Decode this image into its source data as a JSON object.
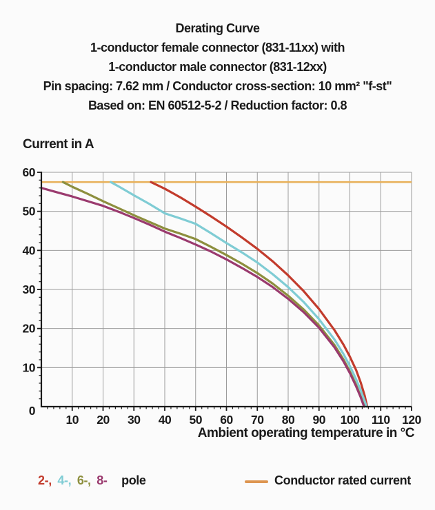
{
  "title": {
    "line1": "Derating Curve",
    "line2": "1-conductor female connector (831-11xx) with",
    "line3": "1-conductor male connector (831-12xx)",
    "line4": "Pin spacing: 7.62 mm / Conductor cross-section: 10 mm² \"f-st\"",
    "line5": "Based on: EN 60512-5-2 / Reduction factor: 0.8"
  },
  "axes": {
    "y_title": "Current in A",
    "x_title": "Ambient operating temperature in °C"
  },
  "legend": {
    "poles": [
      {
        "label": "2-,",
        "color": "#c23b2c"
      },
      {
        "label": "4-,",
        "color": "#7fccd4"
      },
      {
        "label": "6-,",
        "color": "#8d8f3e"
      },
      {
        "label": "8-",
        "color": "#9a3a6e"
      }
    ],
    "poles_suffix": "pole",
    "rated_label": "Conductor rated current",
    "rated_color": "#dd9550"
  },
  "chart_data": {
    "type": "line",
    "title": "Derating Curve",
    "xlabel": "Ambient operating temperature in °C",
    "ylabel": "Current in A",
    "xlim": [
      0,
      120
    ],
    "ylim": [
      0,
      60
    ],
    "x_ticks": [
      10,
      20,
      30,
      40,
      50,
      60,
      70,
      80,
      90,
      100,
      110,
      120
    ],
    "y_ticks": [
      0,
      10,
      20,
      30,
      40,
      50,
      60
    ],
    "minor_tick_step": 2,
    "grid": true,
    "grid_color": "#9b9b9b",
    "axis_color": "#1a1a1a",
    "legend_position": "bottom",
    "rated_current": {
      "label": "Conductor rated current",
      "value": 57.5,
      "color": "#e8b25c",
      "x_range": [
        0,
        120
      ]
    },
    "series": [
      {
        "name": "2-pole",
        "color": "#c23b2c",
        "points": [
          [
            35.5,
            57.5
          ],
          [
            40,
            55.8
          ],
          [
            45,
            53.6
          ],
          [
            50,
            51.2
          ],
          [
            55,
            48.7
          ],
          [
            60,
            46.1
          ],
          [
            65,
            43.3
          ],
          [
            70,
            40.4
          ],
          [
            75,
            37.2
          ],
          [
            80,
            33.6
          ],
          [
            85,
            29.6
          ],
          [
            90,
            25.0
          ],
          [
            95,
            19.6
          ],
          [
            98,
            15.8
          ],
          [
            100,
            12.8
          ],
          [
            102,
            9.4
          ],
          [
            103.5,
            6.2
          ],
          [
            104.8,
            2.8
          ],
          [
            105.6,
            0
          ]
        ]
      },
      {
        "name": "4-pole",
        "color": "#7fccd4",
        "points": [
          [
            22.5,
            57.5
          ],
          [
            25,
            56.4
          ],
          [
            30,
            54.1
          ],
          [
            35,
            51.9
          ],
          [
            40,
            49.5
          ],
          [
            45,
            48.2
          ],
          [
            50,
            46.8
          ],
          [
            55,
            44.4
          ],
          [
            60,
            41.9
          ],
          [
            65,
            39.5
          ],
          [
            70,
            36.9
          ],
          [
            75,
            33.9
          ],
          [
            80,
            30.6
          ],
          [
            85,
            26.8
          ],
          [
            90,
            22.4
          ],
          [
            95,
            17.2
          ],
          [
            98,
            13.4
          ],
          [
            100,
            10.4
          ],
          [
            102,
            7.0
          ],
          [
            103.5,
            4.2
          ],
          [
            104.9,
            1.2
          ],
          [
            105.4,
            0
          ]
        ]
      },
      {
        "name": "6-pole",
        "color": "#8d8f3e",
        "points": [
          [
            7,
            57.5
          ],
          [
            10,
            56.3
          ],
          [
            15,
            54.5
          ],
          [
            20,
            52.6
          ],
          [
            25,
            50.8
          ],
          [
            30,
            49.0
          ],
          [
            35,
            47.3
          ],
          [
            40,
            45.6
          ],
          [
            45,
            44.3
          ],
          [
            50,
            42.9
          ],
          [
            55,
            40.9
          ],
          [
            60,
            38.8
          ],
          [
            65,
            36.6
          ],
          [
            70,
            34.2
          ],
          [
            75,
            31.5
          ],
          [
            80,
            28.4
          ],
          [
            85,
            24.9
          ],
          [
            90,
            20.8
          ],
          [
            95,
            15.8
          ],
          [
            98,
            12.0
          ],
          [
            100,
            9.0
          ],
          [
            102,
            5.6
          ],
          [
            103.5,
            2.6
          ],
          [
            104.7,
            0
          ]
        ]
      },
      {
        "name": "8-pole",
        "color": "#9a3a6e",
        "points": [
          [
            0,
            56.0
          ],
          [
            5,
            54.9
          ],
          [
            10,
            53.8
          ],
          [
            15,
            52.6
          ],
          [
            20,
            51.4
          ],
          [
            25,
            49.9
          ],
          [
            30,
            48.3
          ],
          [
            35,
            46.6
          ],
          [
            40,
            44.8
          ],
          [
            45,
            43.2
          ],
          [
            50,
            41.5
          ],
          [
            55,
            39.7
          ],
          [
            60,
            37.7
          ],
          [
            65,
            35.5
          ],
          [
            70,
            33.2
          ],
          [
            75,
            30.6
          ],
          [
            80,
            27.6
          ],
          [
            85,
            24.2
          ],
          [
            90,
            20.2
          ],
          [
            95,
            15.2
          ],
          [
            98,
            11.5
          ],
          [
            100,
            8.6
          ],
          [
            102,
            5.2
          ],
          [
            103.5,
            2.4
          ],
          [
            104.6,
            0
          ]
        ]
      }
    ]
  }
}
